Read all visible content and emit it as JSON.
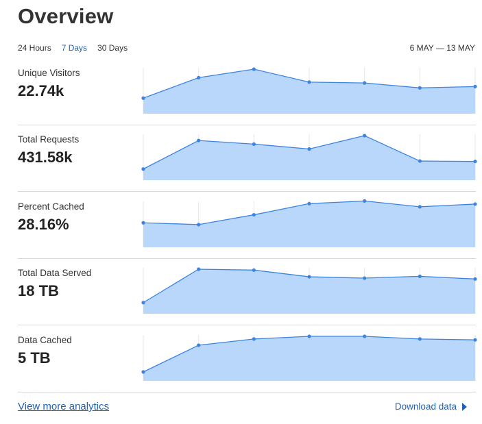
{
  "title": "Overview",
  "range_tabs": [
    {
      "label": "24 Hours",
      "active": false
    },
    {
      "label": "7 Days",
      "active": true
    },
    {
      "label": "30 Days",
      "active": false
    }
  ],
  "date_range": "6 MAY — 13 MAY",
  "colors": {
    "accent": "#1e62b7",
    "line": "#3b84e3",
    "fill": "#b9d6fb",
    "gridline": "#e6e6e6",
    "divider": "#d9d9d9"
  },
  "metrics": [
    {
      "label": "Unique Visitors",
      "value": "22.74k"
    },
    {
      "label": "Total Requests",
      "value": "431.58k"
    },
    {
      "label": "Percent Cached",
      "value": "28.16%"
    },
    {
      "label": "Total Data Served",
      "value": "18 TB"
    },
    {
      "label": "Data Cached",
      "value": "5 TB"
    }
  ],
  "chart_data": [
    {
      "type": "area",
      "series": [
        {
          "values": [
            0.35,
            0.81,
            1.0,
            0.71,
            0.69,
            0.58,
            0.61
          ]
        }
      ],
      "ylim": [
        0,
        1
      ]
    },
    {
      "type": "area",
      "series": [
        {
          "values": [
            0.25,
            0.89,
            0.81,
            0.7,
            1.0,
            0.43,
            0.42
          ]
        }
      ],
      "ylim": [
        0,
        1
      ]
    },
    {
      "type": "area",
      "series": [
        {
          "values": [
            0.55,
            0.51,
            0.73,
            0.98,
            1.04,
            0.91,
            0.97
          ]
        }
      ],
      "ylim": [
        0,
        1
      ]
    },
    {
      "type": "area",
      "series": [
        {
          "values": [
            0.25,
            1.0,
            0.98,
            0.83,
            0.8,
            0.84,
            0.78
          ]
        }
      ],
      "ylim": [
        0,
        1
      ]
    },
    {
      "type": "area",
      "series": [
        {
          "values": [
            0.2,
            0.8,
            0.94,
            1.0,
            1.0,
            0.94,
            0.92
          ]
        }
      ],
      "ylim": [
        0,
        1
      ]
    }
  ],
  "footer": {
    "view_more": "View more analytics",
    "download": "Download data"
  }
}
